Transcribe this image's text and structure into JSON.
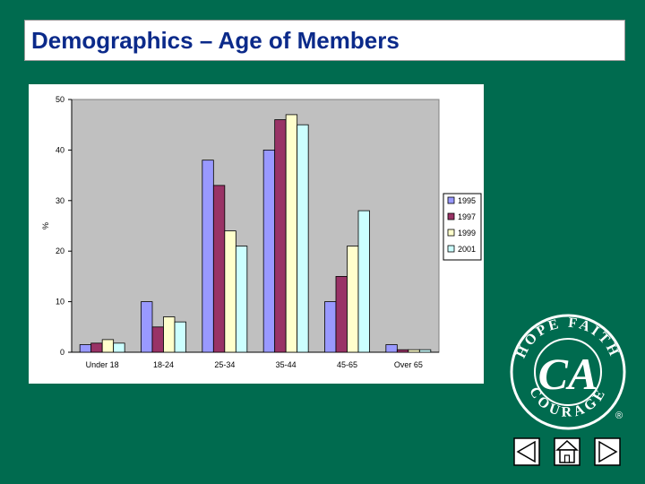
{
  "slide": {
    "title": "Demographics – Age of Members"
  },
  "logo": {
    "center": "CA",
    "ring_top": "HOPE FAITH",
    "ring_bottom": "COURAGE",
    "mark": "®"
  },
  "nav": {
    "back_icon": "triangle-left-icon",
    "home_icon": "home-icon",
    "forward_icon": "triangle-right-icon"
  },
  "chart_data": {
    "type": "bar",
    "ylabel": "%",
    "xlabel": "",
    "ylim": [
      0,
      50
    ],
    "yticks": [
      0,
      10,
      20,
      30,
      40,
      50
    ],
    "grid": false,
    "legend": "right",
    "plot_background": "#c0c0c0",
    "categories": [
      "Under 18",
      "18-24",
      "25-34",
      "35-44",
      "45-65",
      "Over 65"
    ],
    "series": [
      {
        "name": "1995",
        "color": "#9999ff",
        "values": [
          1.5,
          10,
          38,
          40,
          10,
          1.5
        ]
      },
      {
        "name": "1997",
        "color": "#993366",
        "values": [
          1.8,
          5,
          33,
          46,
          15,
          0.5
        ]
      },
      {
        "name": "1999",
        "color": "#ffffcc",
        "values": [
          2.5,
          7,
          24,
          47,
          21,
          0.5
        ]
      },
      {
        "name": "2001",
        "color": "#ccffff",
        "values": [
          1.8,
          6,
          21,
          45,
          28,
          0.5
        ]
      }
    ]
  }
}
